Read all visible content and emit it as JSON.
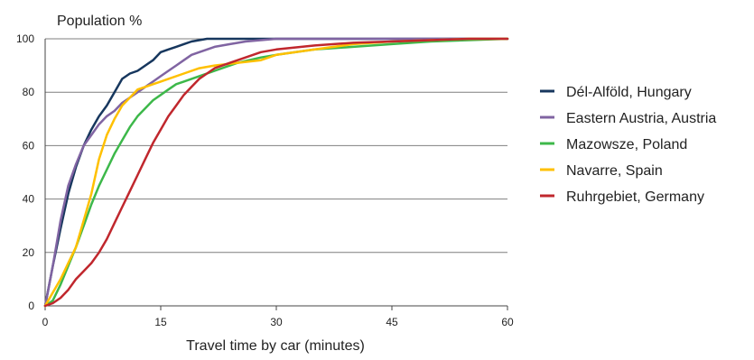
{
  "chart_data": {
    "type": "line",
    "ylabel": "Population %",
    "xlabel": "Travel time by car (minutes)",
    "xlim": [
      0,
      60
    ],
    "ylim": [
      0,
      100
    ],
    "xticks": [
      0,
      15,
      30,
      45,
      60
    ],
    "yticks": [
      0,
      20,
      40,
      60,
      80,
      100
    ],
    "grid": "horizontal",
    "legend_position": "right",
    "series": [
      {
        "name": "Dél-Alföld, Hungary",
        "color": "#17375E",
        "x": [
          0,
          1,
          2,
          3,
          4,
          5,
          6,
          7,
          8,
          9,
          10,
          11,
          12,
          13,
          14,
          15,
          16,
          17,
          18,
          19,
          20,
          21,
          22,
          25,
          30,
          45,
          60
        ],
        "y": [
          0,
          15,
          29,
          42,
          52,
          60,
          66,
          71,
          75,
          80,
          85,
          87,
          88,
          90,
          92,
          95,
          96,
          97,
          98,
          99,
          99.5,
          100,
          100,
          100,
          100,
          100,
          100
        ]
      },
      {
        "name": "Eastern Austria, Austria",
        "color": "#8064A2",
        "x": [
          0,
          1,
          2,
          3,
          4,
          5,
          6,
          7,
          8,
          9,
          10,
          11,
          12,
          13,
          14,
          15,
          16,
          17,
          18,
          19,
          20,
          22,
          24,
          26,
          28,
          30,
          45,
          60
        ],
        "y": [
          0,
          15,
          32,
          45,
          53,
          60,
          64,
          68,
          71,
          73,
          76,
          78,
          80,
          82,
          84,
          86,
          88,
          90,
          92,
          94,
          95,
          97,
          98,
          99,
          99.5,
          100,
          100,
          100
        ]
      },
      {
        "name": "Mazowsze, Poland",
        "color": "#3DB84A",
        "x": [
          0,
          1,
          2,
          3,
          4,
          5,
          6,
          7,
          8,
          9,
          10,
          11,
          12,
          13,
          14,
          15,
          16,
          17,
          18,
          20,
          22,
          25,
          28,
          30,
          35,
          40,
          45,
          50,
          55,
          60
        ],
        "y": [
          0,
          2,
          8,
          15,
          22,
          30,
          38,
          45,
          51,
          57,
          62,
          67,
          71,
          74,
          77,
          79,
          81,
          83,
          84,
          86,
          88,
          91,
          93,
          94,
          96,
          97,
          98,
          99,
          99.5,
          100
        ]
      },
      {
        "name": "Navarre, Spain",
        "color": "#FFC000",
        "x": [
          0,
          1,
          2,
          3,
          4,
          5,
          6,
          7,
          8,
          9,
          10,
          11,
          12,
          13,
          14,
          15,
          16,
          18,
          20,
          22,
          25,
          28,
          30,
          35,
          40,
          45,
          50,
          55,
          60
        ],
        "y": [
          0,
          5,
          10,
          16,
          22,
          32,
          42,
          55,
          64,
          70,
          75,
          78,
          81,
          82,
          83,
          84,
          85,
          87,
          89,
          90,
          91,
          92,
          94,
          96,
          98,
          99,
          99.5,
          100,
          100
        ]
      },
      {
        "name": "Ruhrgebiet, Germany",
        "color": "#C0272D",
        "x": [
          0,
          1,
          2,
          3,
          4,
          5,
          6,
          7,
          8,
          9,
          10,
          11,
          12,
          13,
          14,
          15,
          16,
          17,
          18,
          19,
          20,
          21,
          22,
          24,
          26,
          28,
          30,
          35,
          40,
          45,
          50,
          55,
          60
        ],
        "y": [
          0,
          1,
          3,
          6,
          10,
          13,
          16,
          20,
          25,
          31,
          37,
          43,
          49,
          55,
          61,
          66,
          71,
          75,
          79,
          82,
          85,
          87,
          89,
          91,
          93,
          95,
          96,
          97.5,
          98.5,
          99,
          99.5,
          100,
          100
        ]
      }
    ]
  }
}
